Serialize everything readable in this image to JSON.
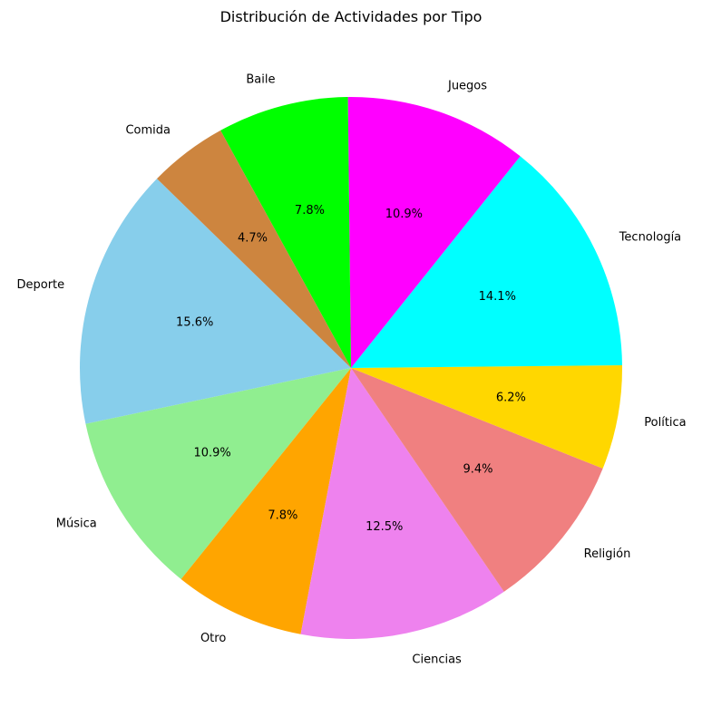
{
  "chart_data": {
    "type": "pie",
    "title": "Distribución de Actividades por Tipo",
    "slices": [
      {
        "label": "Deporte",
        "value": 15.6,
        "pct_label": "15.6%",
        "color": "#87CEEB"
      },
      {
        "label": "Música",
        "value": 10.9,
        "pct_label": "10.9%",
        "color": "#90EE90"
      },
      {
        "label": "Otro",
        "value": 7.8,
        "pct_label": "7.8%",
        "color": "#FFA500"
      },
      {
        "label": "Ciencias",
        "value": 12.5,
        "pct_label": "12.5%",
        "color": "#EE82EE"
      },
      {
        "label": "Religión",
        "value": 9.4,
        "pct_label": "9.4%",
        "color": "#F08080"
      },
      {
        "label": "Política",
        "value": 6.2,
        "pct_label": "6.2%",
        "color": "#FFD700"
      },
      {
        "label": "Tecnología",
        "value": 14.1,
        "pct_label": "14.1%",
        "color": "#00FFFF"
      },
      {
        "label": "Juegos",
        "value": 10.9,
        "pct_label": "10.9%",
        "color": "#FF00FF"
      },
      {
        "label": "Baile",
        "value": 7.8,
        "pct_label": "7.8%",
        "color": "#00FF00"
      },
      {
        "label": "Comida",
        "value": 4.7,
        "pct_label": "4.7%",
        "color": "#CD853F"
      }
    ],
    "direction": "counterclockwise",
    "legend": "none"
  }
}
